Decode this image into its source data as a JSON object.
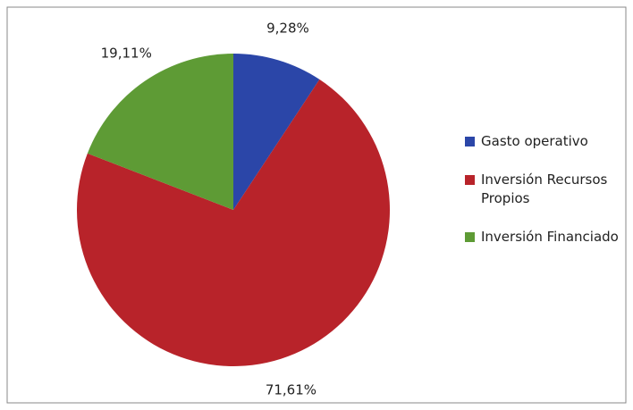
{
  "chart_data": {
    "type": "pie",
    "categories": [
      "Gasto operativo",
      "Inversión Recursos Propios",
      "Inversión Financiado"
    ],
    "values": [
      9.28,
      71.61,
      19.11
    ],
    "value_labels": [
      "9,28%",
      "71,61%",
      "19,11%"
    ],
    "colors": [
      "#2b46a8",
      "#b8232a",
      "#5e9b35"
    ],
    "legend": "right"
  }
}
